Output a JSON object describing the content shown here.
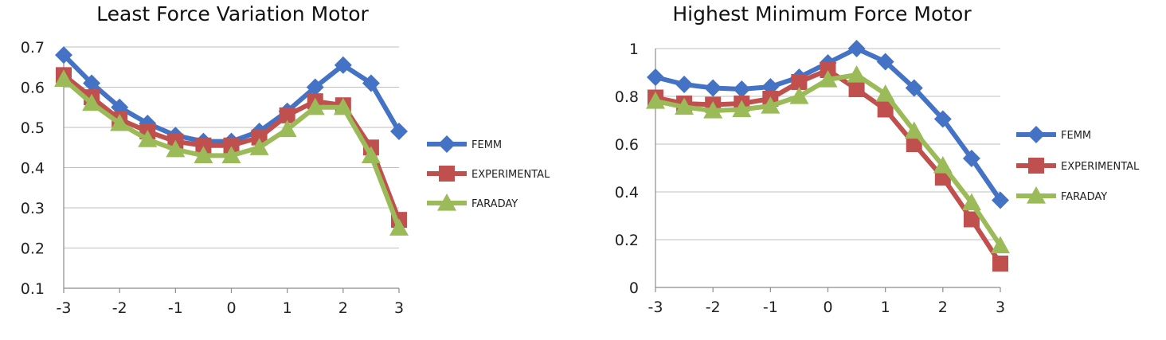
{
  "chart_data": [
    {
      "type": "line",
      "title": "Least Force Variation Motor",
      "xlabel": "",
      "ylabel": "",
      "x": [
        -3,
        -2.5,
        -2,
        -1.5,
        -1,
        -0.5,
        0,
        0.5,
        1,
        1.5,
        2,
        2.5,
        3
      ],
      "xlim": [
        -3,
        3
      ],
      "xticks": [
        -3,
        -2,
        -1,
        0,
        1,
        2,
        3
      ],
      "ylim": [
        0.1,
        0.7
      ],
      "yticks": [
        0.1,
        0.2,
        0.3,
        0.4,
        0.5,
        0.6,
        0.7
      ],
      "grid": true,
      "legend_position": "right",
      "series": [
        {
          "name": "FEMM",
          "color": "#4472c4",
          "marker": "diamond",
          "values": [
            0.68,
            0.61,
            0.55,
            0.51,
            0.48,
            0.465,
            0.465,
            0.49,
            0.54,
            0.6,
            0.655,
            0.61,
            0.49
          ]
        },
        {
          "name": "EXPERIMENTAL",
          "color": "#c0504d",
          "marker": "square",
          "values": [
            0.63,
            0.575,
            0.52,
            0.49,
            0.465,
            0.455,
            0.455,
            0.475,
            0.53,
            0.565,
            0.555,
            0.45,
            0.27
          ]
        },
        {
          "name": "FARADAY",
          "color": "#9bbb59",
          "marker": "triangle",
          "values": [
            0.62,
            0.56,
            0.51,
            0.47,
            0.445,
            0.43,
            0.43,
            0.45,
            0.495,
            0.55,
            0.55,
            0.43,
            0.25
          ]
        }
      ]
    },
    {
      "type": "line",
      "title": "Highest Minimum Force Motor",
      "xlabel": "",
      "ylabel": "",
      "x": [
        -3,
        -2.5,
        -2,
        -1.5,
        -1,
        -0.5,
        0,
        0.5,
        1,
        1.5,
        2,
        2.5,
        3
      ],
      "xlim": [
        -3,
        3
      ],
      "xticks": [
        -3,
        -2,
        -1,
        0,
        1,
        2,
        3
      ],
      "ylim": [
        0,
        1
      ],
      "yticks": [
        0,
        0.2,
        0.4,
        0.6,
        0.8,
        1
      ],
      "grid": true,
      "legend_position": "right",
      "series": [
        {
          "name": "FEMM",
          "color": "#4472c4",
          "marker": "diamond",
          "values": [
            0.88,
            0.85,
            0.835,
            0.83,
            0.84,
            0.88,
            0.94,
            1.0,
            0.945,
            0.835,
            0.705,
            0.54,
            0.365
          ]
        },
        {
          "name": "EXPERIMENTAL",
          "color": "#c0504d",
          "marker": "square",
          "values": [
            0.795,
            0.77,
            0.765,
            0.77,
            0.79,
            0.86,
            0.91,
            0.83,
            0.745,
            0.6,
            0.46,
            0.285,
            0.1
          ]
        },
        {
          "name": "FARADAY",
          "color": "#9bbb59",
          "marker": "triangle",
          "values": [
            0.78,
            0.755,
            0.74,
            0.745,
            0.76,
            0.8,
            0.87,
            0.89,
            0.81,
            0.655,
            0.51,
            0.355,
            0.175
          ]
        }
      ]
    }
  ]
}
